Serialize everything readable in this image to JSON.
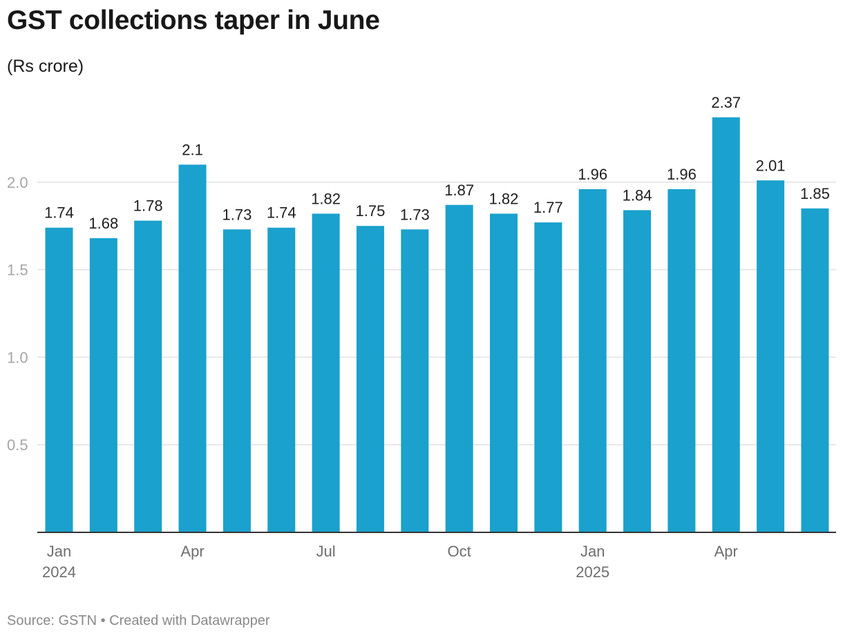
{
  "chart_data": {
    "type": "bar",
    "title": "GST collections taper in June",
    "subtitle": "(Rs crore)",
    "categories": [
      "Jan 2024",
      "Feb 2024",
      "Mar 2024",
      "Apr 2024",
      "May 2024",
      "Jun 2024",
      "Jul 2024",
      "Aug 2024",
      "Sep 2024",
      "Oct 2024",
      "Nov 2024",
      "Dec 2024",
      "Jan 2025",
      "Feb 2025",
      "Mar 2025",
      "Apr 2025",
      "May 2025",
      "Jun 2025"
    ],
    "values": [
      1.74,
      1.68,
      1.78,
      2.1,
      1.73,
      1.74,
      1.82,
      1.75,
      1.73,
      1.87,
      1.82,
      1.77,
      1.96,
      1.84,
      1.96,
      2.37,
      2.01,
      1.85
    ],
    "value_labels": [
      "1.74",
      "1.68",
      "1.78",
      "2.1",
      "1.73",
      "1.74",
      "1.82",
      "1.75",
      "1.73",
      "1.87",
      "1.82",
      "1.77",
      "1.96",
      "1.84",
      "1.96",
      "2.37",
      "2.01",
      "1.85"
    ],
    "x_tick_labels": [
      {
        "index": 0,
        "line1": "Jan",
        "line2": "2024"
      },
      {
        "index": 3,
        "line1": "Apr",
        "line2": ""
      },
      {
        "index": 6,
        "line1": "Jul",
        "line2": ""
      },
      {
        "index": 9,
        "line1": "Oct",
        "line2": ""
      },
      {
        "index": 12,
        "line1": "Jan",
        "line2": "2025"
      },
      {
        "index": 15,
        "line1": "Apr",
        "line2": ""
      }
    ],
    "y_ticks": [
      {
        "value": 0.5,
        "label": "0.5"
      },
      {
        "value": 1.0,
        "label": "1.0"
      },
      {
        "value": 1.5,
        "label": "1.5"
      },
      {
        "value": 2.0,
        "label": "2.0"
      }
    ],
    "ylim": [
      0,
      2.5
    ],
    "grid": true,
    "bar_color": "#1aa1cd",
    "grid_color": "#e2e2e2",
    "baseline_color": "#333333"
  },
  "footer": {
    "source": "Source: GSTN • Created with Datawrapper"
  }
}
